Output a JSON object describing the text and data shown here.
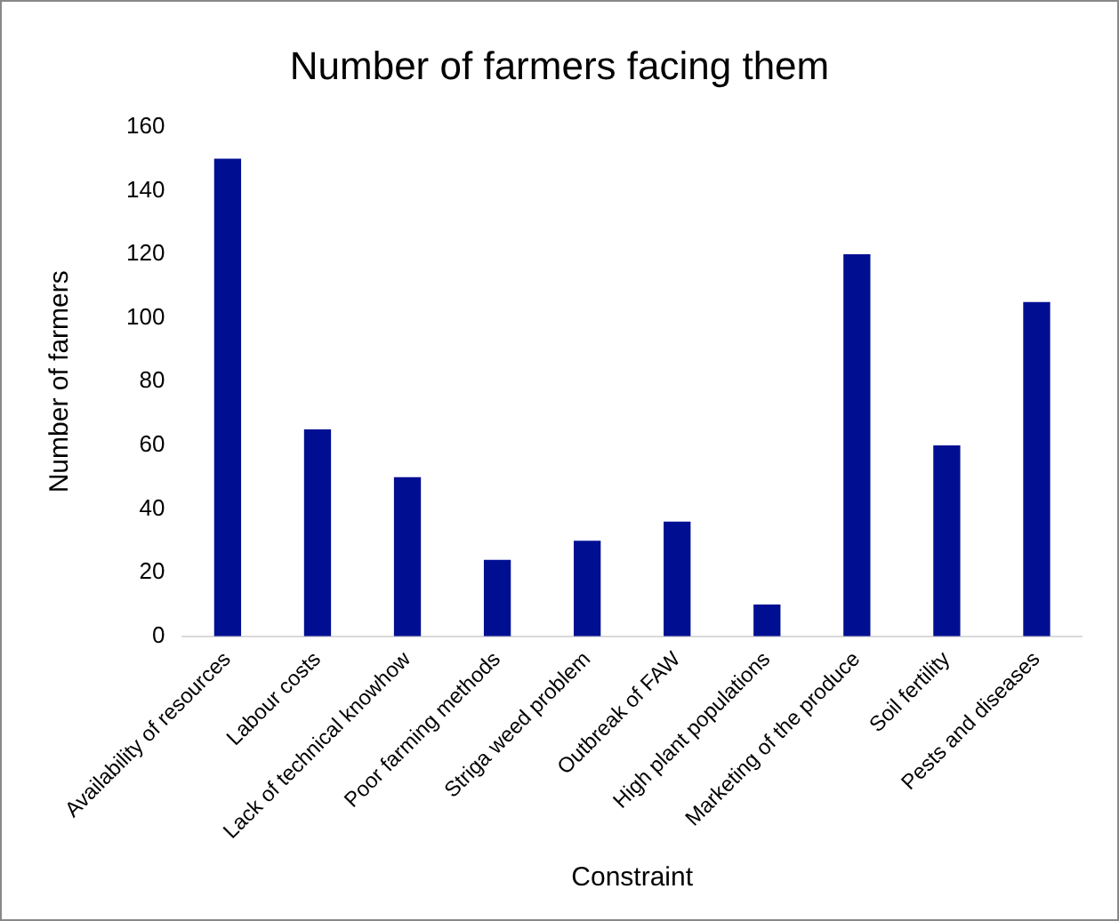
{
  "chart_data": {
    "type": "bar",
    "title": "Number of farmers facing them",
    "xlabel": "Constraint",
    "ylabel": "Number of farmers",
    "categories": [
      "Availability of resources",
      "Labour costs",
      "Lack of technical knowhow",
      "Poor farming methods",
      "Striga weed problem",
      "Outbreak of FAW",
      "High plant populations",
      "Marketing of the produce",
      "Soil fertility",
      "Pests and diseases"
    ],
    "values": [
      150,
      65,
      50,
      24,
      30,
      36,
      10,
      120,
      60,
      105
    ],
    "color": "#000f92",
    "ylim": [
      0,
      160
    ],
    "yticks": [
      0,
      20,
      40,
      60,
      80,
      100,
      120,
      140,
      160
    ],
    "grid": false,
    "legend": false
  }
}
